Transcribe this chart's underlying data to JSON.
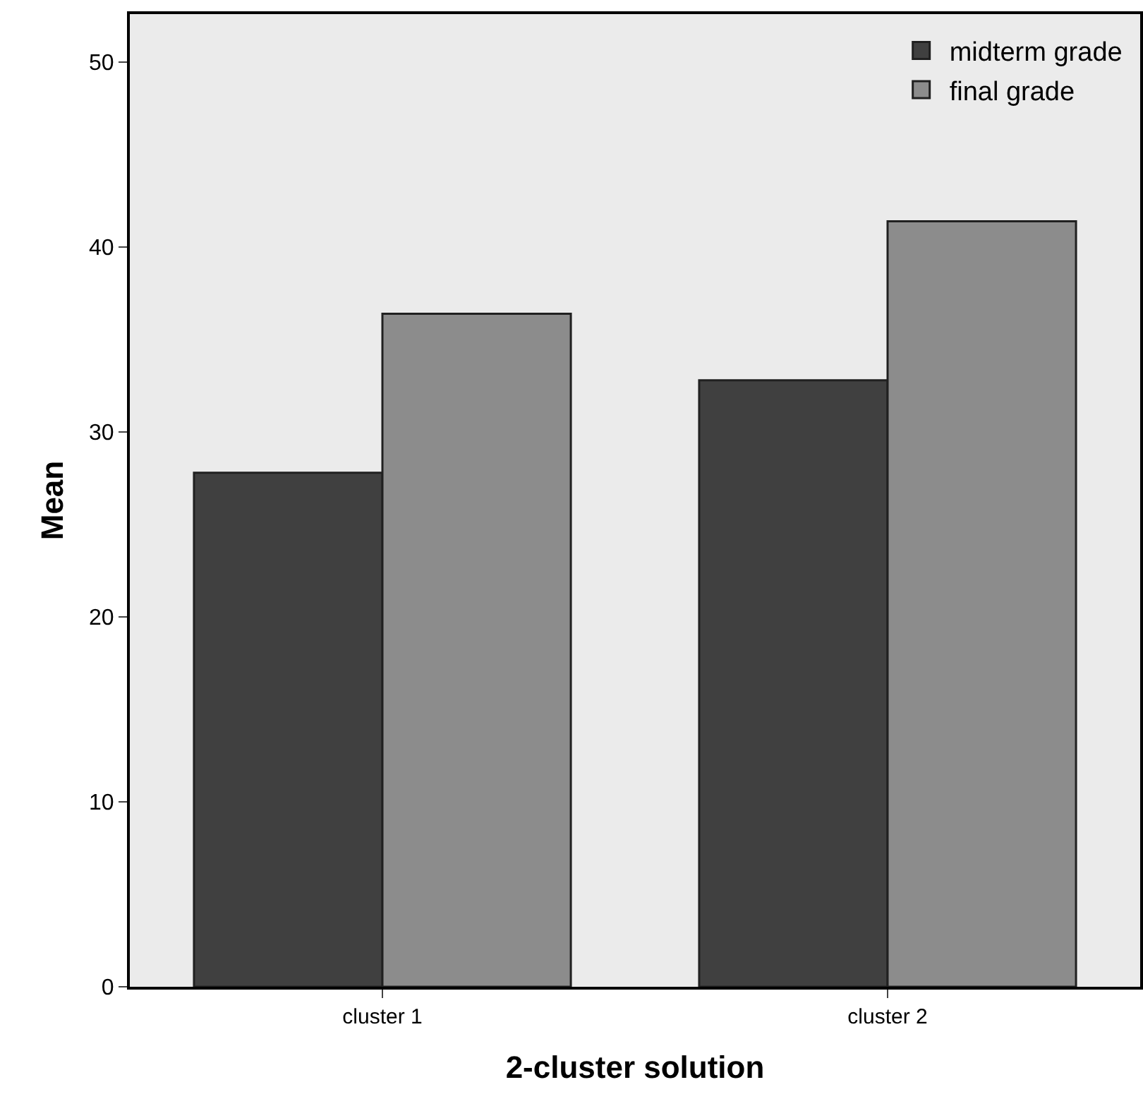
{
  "chart_data": {
    "type": "bar",
    "xlabel": "2-cluster solution",
    "ylabel": "Mean",
    "categories": [
      "cluster 1",
      "cluster 2"
    ],
    "series": [
      {
        "name": "midterm grade",
        "color": "#404040",
        "values": [
          27.8,
          32.8
        ]
      },
      {
        "name": "final grade",
        "color": "#8c8c8c",
        "values": [
          36.4,
          41.4
        ]
      }
    ],
    "ylim": [
      0,
      52.6
    ],
    "yticks": [
      0,
      10,
      20,
      30,
      40,
      50
    ],
    "grid": false,
    "legend": "top right"
  }
}
